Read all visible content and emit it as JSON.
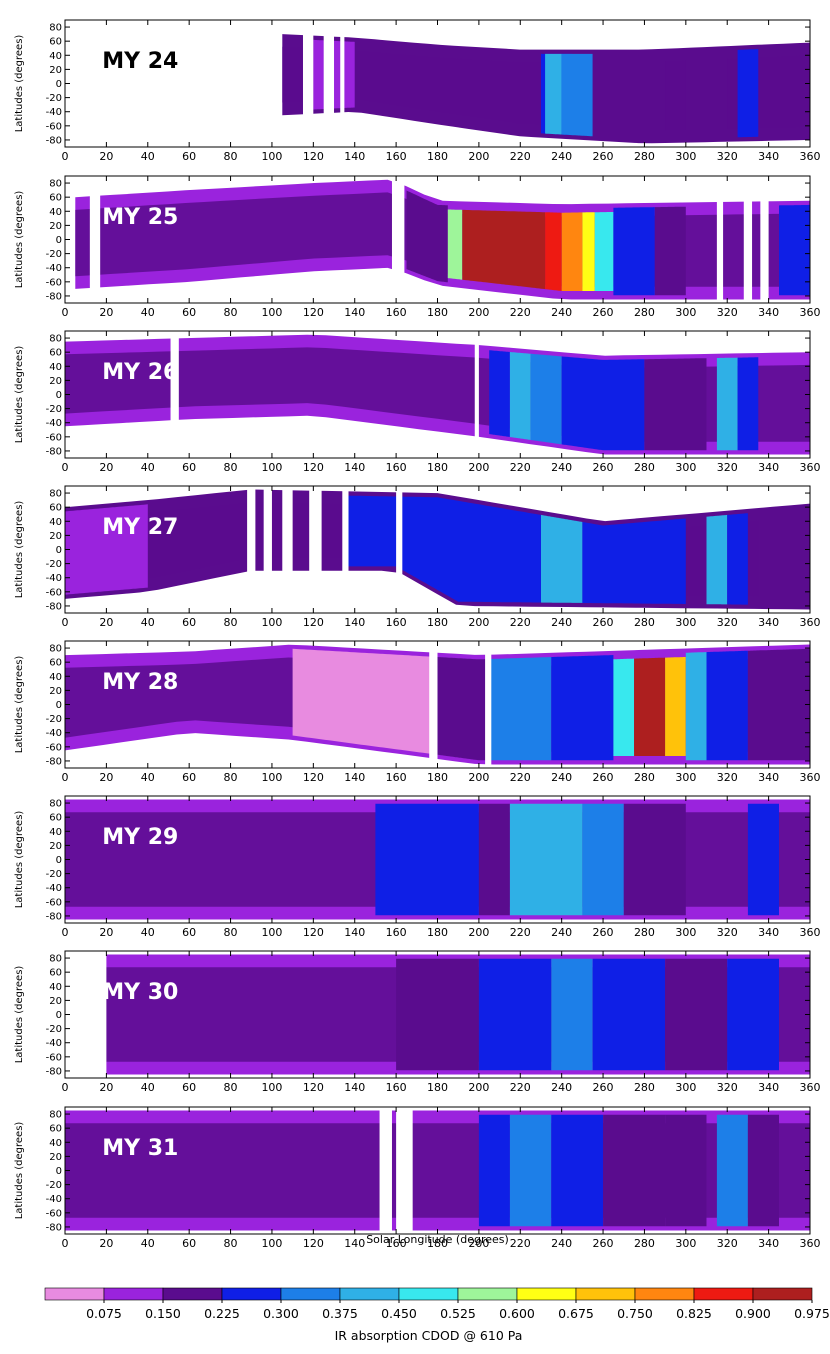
{
  "chart_data": {
    "type": "heatmap",
    "panel_labels": [
      "MY 24",
      "MY 25",
      "MY 26",
      "MY 27",
      "MY 28",
      "MY 29",
      "MY 30",
      "MY 31"
    ],
    "xlabel": "Solar Longitude (degrees)",
    "ylabel": "Latitudes (degrees)",
    "xlim": [
      0,
      360
    ],
    "ylim": [
      -90,
      90
    ],
    "x_ticks": [
      0,
      20,
      40,
      60,
      80,
      100,
      120,
      140,
      160,
      180,
      200,
      220,
      240,
      260,
      280,
      300,
      320,
      340,
      360
    ],
    "y_ticks": [
      80,
      60,
      40,
      20,
      0,
      -20,
      -40,
      -60,
      -80
    ],
    "colorbar": {
      "label": "IR absorption CDOD @ 610 Pa",
      "tick_labels": [
        "0.075",
        "0.150",
        "0.225",
        "0.300",
        "0.375",
        "0.450",
        "0.525",
        "0.600",
        "0.675",
        "0.750",
        "0.825",
        "0.900",
        "0.975"
      ],
      "colors": [
        "#e88be0",
        "#9a23dd",
        "#5a0c8e",
        "#0f1fe6",
        "#1d7fe8",
        "#2fb0e6",
        "#38e8ee",
        "#9ef59a",
        "#ffff14",
        "#ffc20a",
        "#ff8610",
        "#ee1a12",
        "#ad1f1f"
      ]
    },
    "panels": [
      {
        "label": "MY 24",
        "lat_north": [
          [
            105,
            70
          ],
          [
            140,
            65
          ],
          [
            180,
            55
          ],
          [
            220,
            48
          ],
          [
            280,
            48
          ],
          [
            360,
            58
          ]
        ],
        "lat_south": [
          [
            105,
            -45
          ],
          [
            140,
            -40
          ],
          [
            180,
            -58
          ],
          [
            220,
            -75
          ],
          [
            280,
            -85
          ],
          [
            360,
            -80
          ]
        ],
        "gaps": [
          [
            115,
            120
          ],
          [
            125,
            130
          ],
          [
            133,
            135
          ]
        ],
        "bg": 2,
        "blobs": [
          [
            120,
            140,
            1
          ],
          [
            230,
            245,
            3
          ],
          [
            232,
            240,
            5
          ],
          [
            240,
            255,
            4
          ],
          [
            255,
            290,
            2
          ],
          [
            300,
            320,
            2
          ],
          [
            325,
            335,
            3
          ]
        ]
      },
      {
        "label": "MY 25",
        "lat_north": [
          [
            5,
            60
          ],
          [
            60,
            70
          ],
          [
            120,
            80
          ],
          [
            158,
            85
          ],
          [
            180,
            55
          ],
          [
            240,
            50
          ],
          [
            360,
            55
          ]
        ],
        "lat_south": [
          [
            5,
            -70
          ],
          [
            60,
            -60
          ],
          [
            120,
            -45
          ],
          [
            158,
            -40
          ],
          [
            180,
            -65
          ],
          [
            240,
            -85
          ],
          [
            360,
            -85
          ]
        ],
        "gaps": [
          [
            12,
            17
          ],
          [
            158,
            164
          ],
          [
            315,
            318
          ],
          [
            328,
            332
          ],
          [
            336,
            340
          ]
        ],
        "bg": 1,
        "blobs": [
          [
            165,
            185,
            2
          ],
          [
            185,
            192,
            7
          ],
          [
            192,
            232,
            12
          ],
          [
            232,
            240,
            11
          ],
          [
            240,
            250,
            10
          ],
          [
            250,
            256,
            8
          ],
          [
            256,
            265,
            6
          ],
          [
            265,
            285,
            3
          ],
          [
            285,
            300,
            2
          ],
          [
            345,
            360,
            3
          ]
        ]
      },
      {
        "label": "MY 26",
        "lat_north": [
          [
            0,
            75
          ],
          [
            60,
            80
          ],
          [
            120,
            85
          ],
          [
            200,
            70
          ],
          [
            260,
            55
          ],
          [
            360,
            60
          ]
        ],
        "lat_south": [
          [
            0,
            -45
          ],
          [
            60,
            -35
          ],
          [
            120,
            -30
          ],
          [
            200,
            -60
          ],
          [
            260,
            -85
          ],
          [
            360,
            -85
          ]
        ],
        "gaps": [
          [
            51,
            55
          ],
          [
            198,
            200
          ]
        ],
        "bg": 1,
        "blobs": [
          [
            205,
            215,
            3
          ],
          [
            215,
            225,
            5
          ],
          [
            225,
            240,
            4
          ],
          [
            240,
            280,
            3
          ],
          [
            280,
            310,
            2
          ],
          [
            315,
            325,
            5
          ],
          [
            325,
            335,
            3
          ]
        ]
      },
      {
        "label": "MY 27",
        "lat_north": [
          [
            0,
            60
          ],
          [
            40,
            70
          ],
          [
            90,
            85
          ],
          [
            180,
            80
          ],
          [
            260,
            40
          ],
          [
            360,
            65
          ]
        ],
        "lat_south": [
          [
            0,
            -70
          ],
          [
            40,
            -60
          ],
          [
            90,
            -30
          ],
          [
            160,
            -30
          ],
          [
            190,
            -80
          ],
          [
            360,
            -85
          ]
        ],
        "gaps": [
          [
            88,
            92
          ],
          [
            96,
            100
          ],
          [
            105,
            110
          ],
          [
            118,
            124
          ],
          [
            134,
            137
          ],
          [
            160,
            163
          ]
        ],
        "bg": 2,
        "blobs": [
          [
            0,
            40,
            1
          ],
          [
            135,
            180,
            3
          ],
          [
            180,
            230,
            3
          ],
          [
            230,
            250,
            5
          ],
          [
            250,
            300,
            3
          ],
          [
            310,
            320,
            5
          ],
          [
            320,
            330,
            3
          ],
          [
            335,
            360,
            2
          ]
        ]
      },
      {
        "label": "MY 28",
        "lat_north": [
          [
            0,
            70
          ],
          [
            60,
            75
          ],
          [
            110,
            85
          ],
          [
            200,
            70
          ],
          [
            360,
            85
          ]
        ],
        "lat_south": [
          [
            0,
            -65
          ],
          [
            60,
            -40
          ],
          [
            110,
            -50
          ],
          [
            200,
            -85
          ],
          [
            360,
            -85
          ]
        ],
        "gaps": [
          [
            176,
            180
          ],
          [
            203,
            206
          ]
        ],
        "bg": 1,
        "blobs": [
          [
            110,
            180,
            0
          ],
          [
            180,
            205,
            2
          ],
          [
            205,
            235,
            4
          ],
          [
            235,
            265,
            3
          ],
          [
            265,
            275,
            6
          ],
          [
            275,
            290,
            12
          ],
          [
            290,
            300,
            9
          ],
          [
            300,
            310,
            5
          ],
          [
            310,
            330,
            3
          ],
          [
            330,
            360,
            2
          ]
        ]
      },
      {
        "label": "MY 29",
        "lat_north": [
          [
            0,
            85
          ],
          [
            360,
            85
          ]
        ],
        "lat_south": [
          [
            0,
            -85
          ],
          [
            360,
            -85
          ]
        ],
        "gaps": [],
        "bg": 1,
        "blobs": [
          [
            150,
            200,
            3
          ],
          [
            200,
            215,
            2
          ],
          [
            215,
            250,
            5
          ],
          [
            250,
            270,
            4
          ],
          [
            270,
            300,
            2
          ],
          [
            330,
            345,
            3
          ]
        ]
      },
      {
        "label": "MY 30",
        "lat_north": [
          [
            0,
            85
          ],
          [
            360,
            85
          ]
        ],
        "lat_south": [
          [
            0,
            -85
          ],
          [
            360,
            -85
          ]
        ],
        "gaps": [
          [
            0,
            20
          ]
        ],
        "bg": 1,
        "blobs": [
          [
            160,
            200,
            2
          ],
          [
            200,
            235,
            3
          ],
          [
            235,
            255,
            4
          ],
          [
            255,
            290,
            3
          ],
          [
            290,
            320,
            2
          ],
          [
            320,
            345,
            3
          ]
        ]
      },
      {
        "label": "MY 31",
        "lat_north": [
          [
            0,
            85
          ],
          [
            360,
            85
          ]
        ],
        "lat_south": [
          [
            0,
            -85
          ],
          [
            360,
            -85
          ]
        ],
        "gaps": [
          [
            152,
            158
          ],
          [
            160,
            168
          ]
        ],
        "bg": 1,
        "blobs": [
          [
            200,
            215,
            3
          ],
          [
            215,
            235,
            4
          ],
          [
            235,
            260,
            3
          ],
          [
            260,
            290,
            2
          ],
          [
            290,
            310,
            2
          ],
          [
            315,
            330,
            4
          ],
          [
            330,
            345,
            2
          ]
        ]
      }
    ]
  }
}
